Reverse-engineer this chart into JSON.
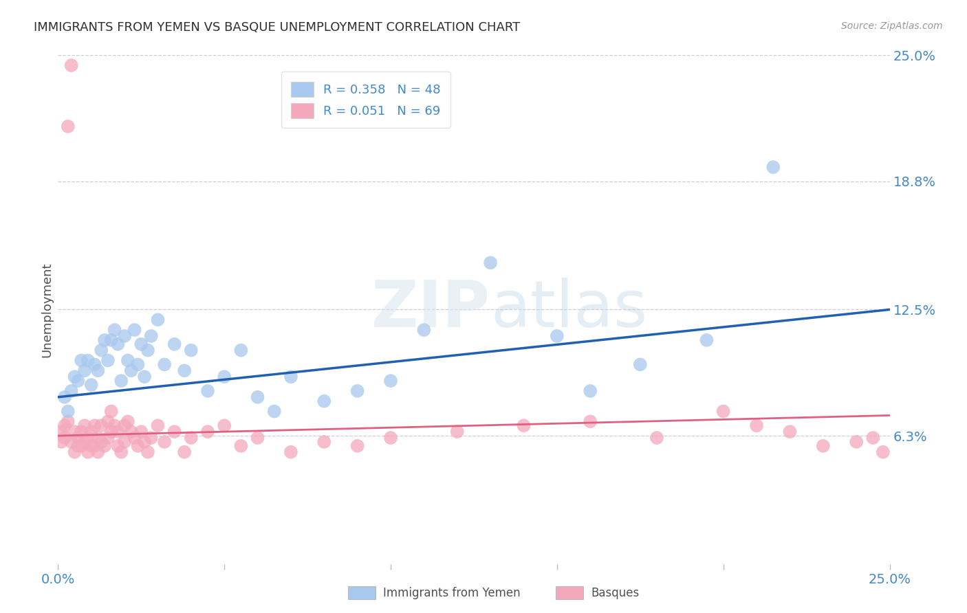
{
  "title": "IMMIGRANTS FROM YEMEN VS BASQUE UNEMPLOYMENT CORRELATION CHART",
  "source": "Source: ZipAtlas.com",
  "ylabel": "Unemployment",
  "xlim": [
    0,
    0.25
  ],
  "ylim": [
    0,
    0.25
  ],
  "ytick_values": [
    0.063,
    0.125,
    0.188,
    0.25
  ],
  "ytick_labels": [
    "6.3%",
    "12.5%",
    "18.8%",
    "25.0%"
  ],
  "blue_R": 0.358,
  "blue_N": 48,
  "pink_R": 0.051,
  "pink_N": 69,
  "blue_color": "#A8C8EE",
  "pink_color": "#F4A8BC",
  "blue_line_color": "#2060B0",
  "pink_line_color": "#E06080",
  "legend_label_blue": "Immigrants from Yemen",
  "legend_label_pink": "Basques",
  "background_color": "#FFFFFF",
  "grid_color": "#CCCCDD",
  "title_color": "#303030",
  "axis_label_color": "#4488CC",
  "blue_x": [
    0.002,
    0.003,
    0.004,
    0.005,
    0.006,
    0.007,
    0.008,
    0.009,
    0.01,
    0.011,
    0.012,
    0.013,
    0.014,
    0.015,
    0.016,
    0.017,
    0.018,
    0.019,
    0.02,
    0.021,
    0.022,
    0.023,
    0.024,
    0.025,
    0.026,
    0.027,
    0.028,
    0.03,
    0.032,
    0.035,
    0.038,
    0.04,
    0.045,
    0.05,
    0.055,
    0.06,
    0.065,
    0.07,
    0.08,
    0.09,
    0.1,
    0.11,
    0.13,
    0.15,
    0.16,
    0.175,
    0.195,
    0.215
  ],
  "blue_y": [
    0.082,
    0.075,
    0.085,
    0.092,
    0.09,
    0.1,
    0.095,
    0.1,
    0.088,
    0.098,
    0.095,
    0.105,
    0.11,
    0.1,
    0.11,
    0.115,
    0.108,
    0.09,
    0.112,
    0.1,
    0.095,
    0.115,
    0.098,
    0.108,
    0.092,
    0.105,
    0.112,
    0.12,
    0.098,
    0.108,
    0.095,
    0.105,
    0.085,
    0.092,
    0.105,
    0.082,
    0.075,
    0.092,
    0.08,
    0.085,
    0.09,
    0.115,
    0.148,
    0.112,
    0.085,
    0.098,
    0.11,
    0.195
  ],
  "pink_x": [
    0.001,
    0.001,
    0.002,
    0.002,
    0.003,
    0.003,
    0.004,
    0.004,
    0.005,
    0.005,
    0.006,
    0.006,
    0.007,
    0.007,
    0.008,
    0.008,
    0.009,
    0.009,
    0.01,
    0.01,
    0.011,
    0.011,
    0.012,
    0.012,
    0.013,
    0.013,
    0.014,
    0.015,
    0.015,
    0.016,
    0.016,
    0.017,
    0.018,
    0.018,
    0.019,
    0.02,
    0.02,
    0.021,
    0.022,
    0.023,
    0.024,
    0.025,
    0.026,
    0.027,
    0.028,
    0.03,
    0.032,
    0.035,
    0.038,
    0.04,
    0.045,
    0.05,
    0.055,
    0.06,
    0.07,
    0.08,
    0.09,
    0.1,
    0.12,
    0.14,
    0.16,
    0.18,
    0.2,
    0.21,
    0.22,
    0.23,
    0.24,
    0.245,
    0.248
  ],
  "pink_y": [
    0.065,
    0.06,
    0.068,
    0.062,
    0.215,
    0.07,
    0.245,
    0.06,
    0.065,
    0.055,
    0.062,
    0.058,
    0.065,
    0.058,
    0.068,
    0.06,
    0.055,
    0.062,
    0.065,
    0.058,
    0.068,
    0.058,
    0.062,
    0.055,
    0.068,
    0.06,
    0.058,
    0.07,
    0.062,
    0.075,
    0.065,
    0.068,
    0.058,
    0.065,
    0.055,
    0.068,
    0.06,
    0.07,
    0.065,
    0.062,
    0.058,
    0.065,
    0.06,
    0.055,
    0.062,
    0.068,
    0.06,
    0.065,
    0.055,
    0.062,
    0.065,
    0.068,
    0.058,
    0.062,
    0.055,
    0.06,
    0.058,
    0.062,
    0.065,
    0.068,
    0.07,
    0.062,
    0.075,
    0.068,
    0.065,
    0.058,
    0.06,
    0.062,
    0.055
  ]
}
